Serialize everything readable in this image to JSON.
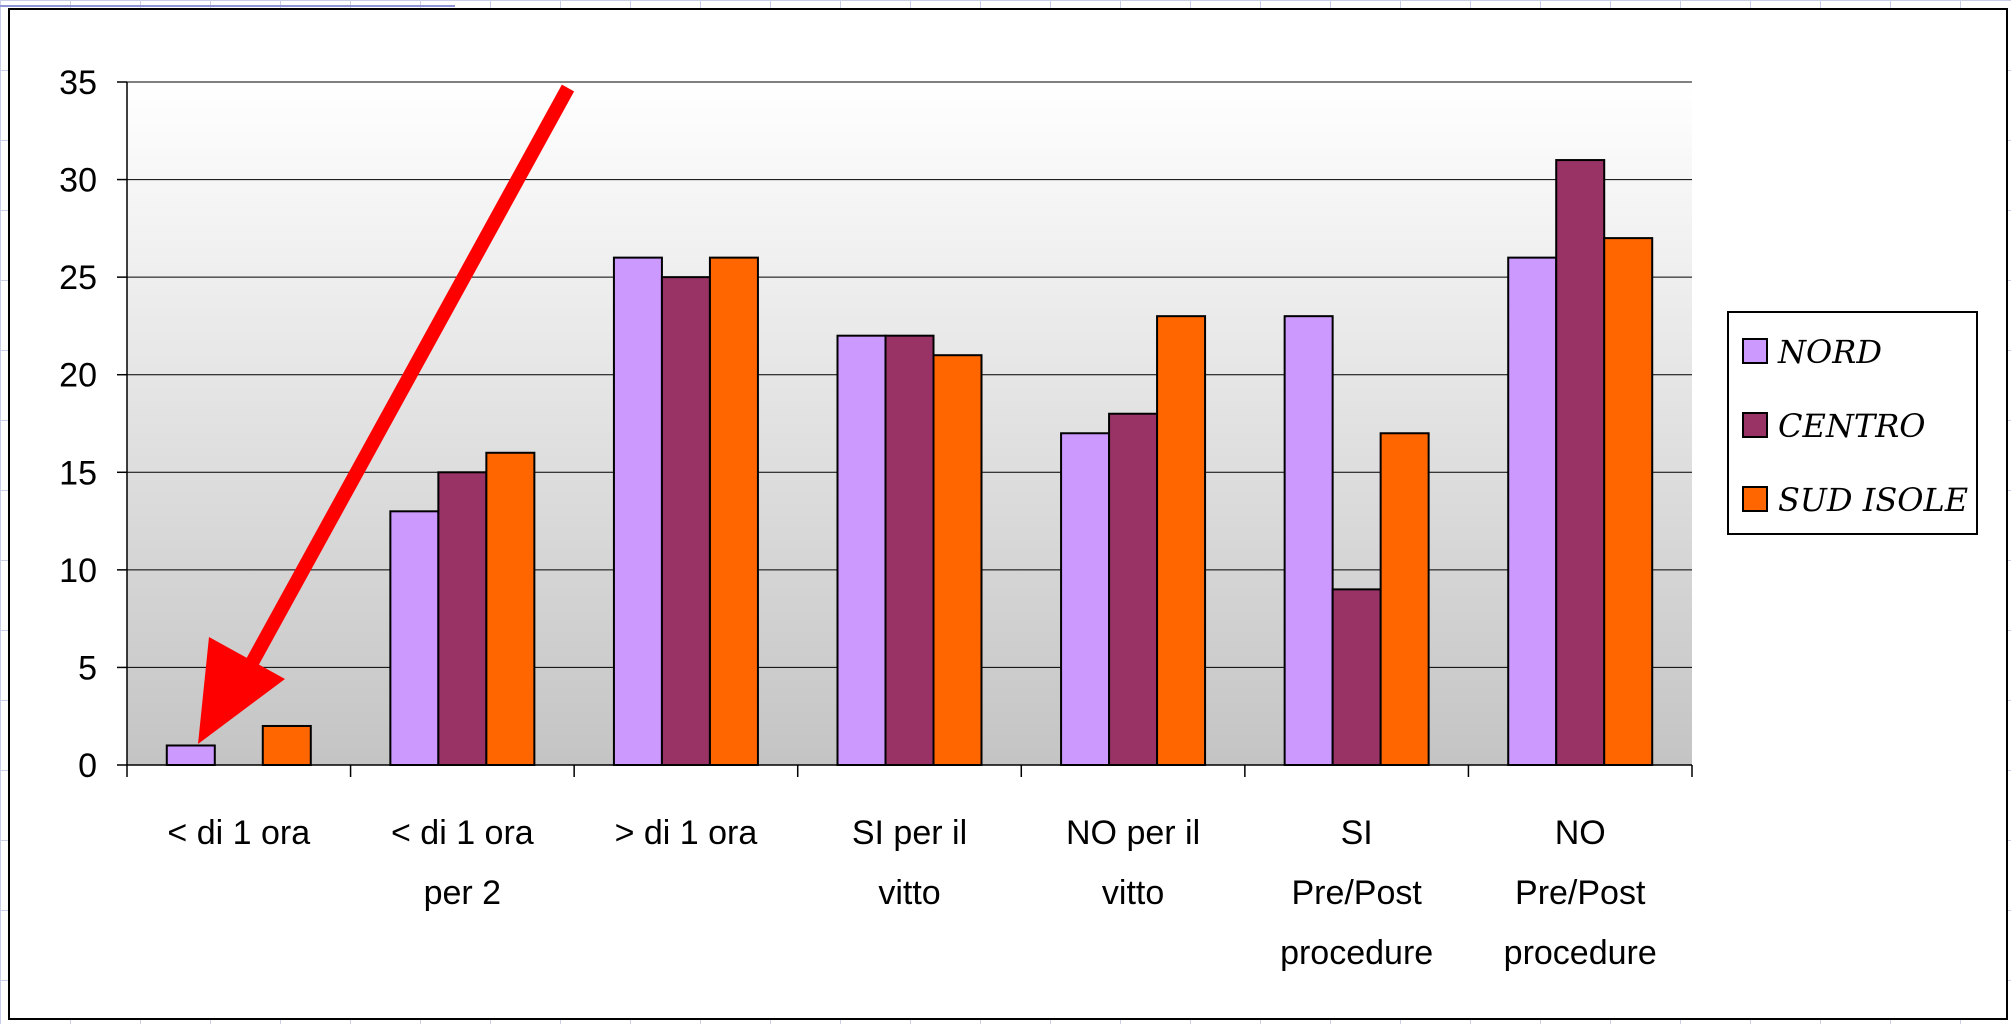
{
  "chart_data": {
    "type": "bar",
    "categories": [
      [
        "< di 1 ora"
      ],
      [
        "< di 1 ora",
        "per 2"
      ],
      [
        "> di 1 ora"
      ],
      [
        "SI per il",
        "vitto"
      ],
      [
        "NO per il",
        "vitto"
      ],
      [
        "SI",
        "Pre/Post",
        "procedure"
      ],
      [
        "NO",
        "Pre/Post",
        "procedure"
      ]
    ],
    "series": [
      {
        "name": "NORD",
        "color": "#cc99ff",
        "values": [
          1,
          13,
          26,
          22,
          17,
          23,
          26
        ]
      },
      {
        "name": "CENTRO",
        "color": "#993366",
        "values": [
          0,
          15,
          25,
          22,
          18,
          9,
          31
        ]
      },
      {
        "name": "SUD ISOLE",
        "color": "#ff6600",
        "values": [
          2,
          16,
          26,
          21,
          23,
          17,
          27
        ]
      }
    ],
    "ylim": [
      0,
      35
    ],
    "yticks": [
      0,
      5,
      10,
      15,
      20,
      25,
      30,
      35
    ],
    "grid": true,
    "legend_position": "right",
    "annotation": {
      "type": "arrow",
      "color": "#ff0000",
      "target": "< di 1 ora"
    }
  }
}
